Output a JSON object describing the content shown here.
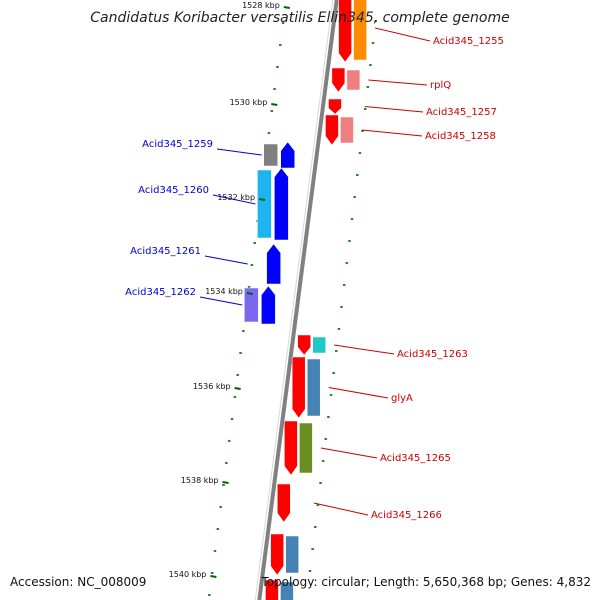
{
  "title": "Candidatus Koribacter versatilis Ellin345, complete genome",
  "accession_text": "Accession: NC_008009",
  "topology_text": "Topology: circular; Length: 5,650,368 bp; Genes: 4,832",
  "scale_labels": [
    "1528 kbp",
    "1530 kbp",
    "1532 kbp",
    "1534 kbp",
    "1536 kbp",
    "1538 kbp",
    "1540 kbp"
  ],
  "forward_genes": [
    {
      "label": "Acid345_1255",
      "color": "#ff0000",
      "cog_color": "#ff8c00"
    },
    {
      "label": "rplQ",
      "color": "#ff0000",
      "cog_color": "#f08080"
    },
    {
      "label": "Acid345_1257",
      "color": "#ff0000",
      "cog_color": ""
    },
    {
      "label": "Acid345_1258",
      "color": "#ff0000",
      "cog_color": "#f08080"
    },
    {
      "label": "Acid345_1263",
      "color": "#ff0000",
      "cog_color": "#20c8c8"
    },
    {
      "label": "glyA",
      "color": "#ff0000",
      "cog_color": "#4682b4"
    },
    {
      "label": "Acid345_1265",
      "color": "#ff0000",
      "cog_color": "#6b8e23"
    },
    {
      "label": "Acid345_1266",
      "color": "#ff0000",
      "cog_color": ""
    },
    {
      "label": "",
      "color": "#ff0000",
      "cog_color": "#4682b4"
    },
    {
      "label": "",
      "color": "#ff0000",
      "cog_color": "#4682b4"
    }
  ],
  "reverse_genes": [
    {
      "label": "Acid345_1259",
      "color": "#0000ff",
      "cog_color": "#808080"
    },
    {
      "label": "Acid345_1260",
      "color": "#0000ff",
      "cog_color": "#1eb4f0"
    },
    {
      "label": "Acid345_1261",
      "color": "#0000ff",
      "cog_color": ""
    },
    {
      "label": "Acid345_1262",
      "color": "#0000ff",
      "cog_color": "#7b68ee"
    }
  ],
  "colors": {
    "forward_label": "#cc0000",
    "reverse_label": "#0000cc",
    "gc_dots": "#228b22",
    "backbone": "#808080"
  }
}
